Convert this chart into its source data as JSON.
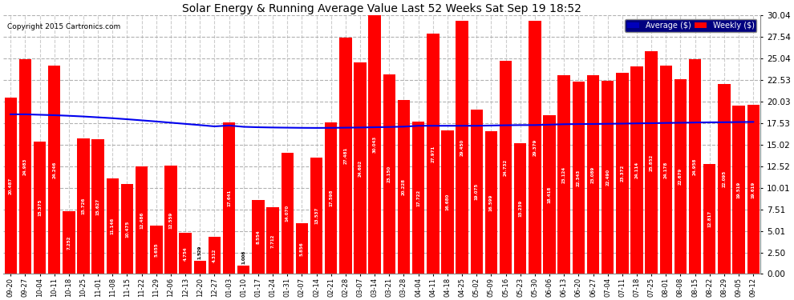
{
  "title": "Solar Energy & Running Average Value Last 52 Weeks Sat Sep 19 18:52",
  "copyright": "Copyright 2015 Cartronics.com",
  "bar_color": "#FF0000",
  "avg_line_color": "#0000EE",
  "fig_bg_color": "#FFFFFF",
  "plot_bg_color": "#FFFFFF",
  "ylim_max": 30.04,
  "yticks": [
    0.0,
    2.5,
    5.01,
    7.51,
    10.01,
    12.52,
    15.02,
    17.53,
    20.03,
    22.53,
    25.04,
    27.54,
    30.04
  ],
  "categories": [
    "09-20",
    "09-27",
    "10-04",
    "10-11",
    "10-18",
    "10-25",
    "11-01",
    "11-08",
    "11-15",
    "11-22",
    "11-29",
    "12-06",
    "12-13",
    "12-20",
    "12-27",
    "01-03",
    "01-10",
    "01-17",
    "01-24",
    "01-31",
    "02-07",
    "02-14",
    "02-21",
    "02-28",
    "03-07",
    "03-14",
    "03-21",
    "03-28",
    "04-04",
    "04-11",
    "04-18",
    "04-25",
    "05-02",
    "05-09",
    "05-16",
    "05-23",
    "05-30",
    "06-06",
    "06-13",
    "06-20",
    "06-27",
    "07-04",
    "07-11",
    "07-18",
    "07-25",
    "08-01",
    "08-08",
    "08-15",
    "08-22",
    "08-29",
    "09-05",
    "09-12"
  ],
  "weekly_values": [
    20.487,
    24.983,
    15.375,
    24.246,
    7.252,
    15.726,
    15.627,
    11.146,
    10.475,
    12.486,
    5.655,
    12.559,
    4.754,
    1.529,
    4.312,
    17.641,
    1.006,
    8.554,
    7.712,
    14.07,
    5.856,
    13.537,
    17.598,
    27.481,
    24.602,
    30.043,
    23.15,
    20.228,
    17.722,
    27.971,
    16.68,
    29.45,
    19.075,
    16.599,
    24.732,
    15.239,
    29.379,
    18.418,
    23.124,
    22.343,
    23.089,
    22.49,
    23.372,
    24.114,
    25.852,
    24.178,
    22.679,
    24.958,
    12.817,
    22.095,
    19.519,
    19.619
  ],
  "avg_values": [
    18.55,
    18.55,
    18.5,
    18.45,
    18.38,
    18.3,
    18.2,
    18.1,
    17.98,
    17.85,
    17.72,
    17.58,
    17.44,
    17.3,
    17.15,
    17.25,
    17.1,
    17.05,
    17.02,
    17.0,
    16.98,
    16.97,
    16.98,
    17.0,
    17.02,
    17.05,
    17.08,
    17.12,
    17.22,
    17.22,
    17.22,
    17.22,
    17.22,
    17.25,
    17.28,
    17.3,
    17.3,
    17.35,
    17.4,
    17.42,
    17.43,
    17.45,
    17.47,
    17.5,
    17.52,
    17.55,
    17.57,
    17.6,
    17.62,
    17.63,
    17.65,
    17.67
  ],
  "legend_bg_color": "#000080"
}
